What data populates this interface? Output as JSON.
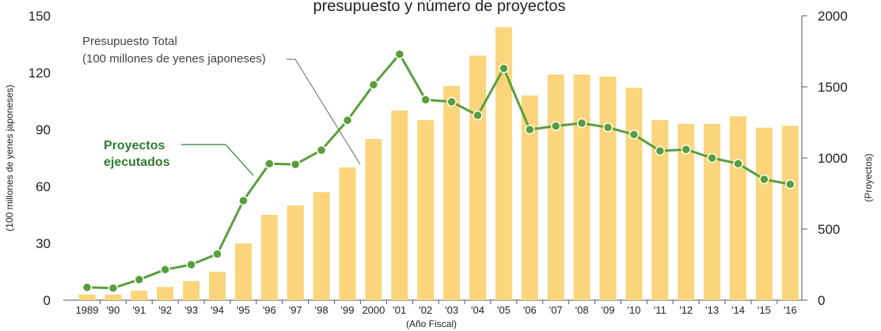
{
  "chart_data": {
    "type": "bar+line",
    "title": "presupuesto y número de proyectos",
    "categories": [
      "1989",
      "'90",
      "'91",
      "'92",
      "'93",
      "'94",
      "'95",
      "'96",
      "'97",
      "'98",
      "'99",
      "2000",
      "'01",
      "'02",
      "'03",
      "'04",
      "'05",
      "'06",
      "'07",
      "'08",
      "'09",
      "'10",
      "'11",
      "'12",
      "'13",
      "'14",
      "'15",
      "'16"
    ],
    "xlabel": "(Año Fiscal)",
    "series": [
      {
        "name": "Presupuesto Total (100 millones de yenes japoneses)",
        "kind": "bar",
        "axis": "left",
        "color": "#fbd57c",
        "values": [
          3,
          3,
          5,
          7,
          10,
          15,
          30,
          45,
          50,
          57,
          70,
          85,
          100,
          95,
          113,
          129,
          144,
          108,
          119,
          119,
          118,
          112,
          95,
          93,
          93,
          97,
          91,
          92
        ]
      },
      {
        "name": "Proyectos ejecutados",
        "kind": "line",
        "axis": "right",
        "color": "#5a9e3c",
        "values": [
          90,
          85,
          145,
          215,
          250,
          325,
          700,
          960,
          955,
          1055,
          1265,
          1515,
          1730,
          1410,
          1395,
          1300,
          1630,
          1200,
          1225,
          1245,
          1215,
          1165,
          1050,
          1060,
          1000,
          960,
          850,
          815
        ]
      }
    ],
    "y_left": {
      "label": "(100 millones de yenes japoneses)",
      "ylim": [
        0,
        150
      ],
      "ticks": [
        "0",
        "30",
        "60",
        "90",
        "120",
        "150"
      ]
    },
    "y_right": {
      "label": "(Proyectos)",
      "ylim": [
        0,
        2000
      ],
      "ticks": [
        "0",
        "500",
        "1000",
        "1500",
        "2000"
      ]
    },
    "annotations": {
      "bar_label_1": "Presupuesto Total",
      "bar_label_2": "(100 millones de yenes japoneses)",
      "line_label_1": "Proyectos",
      "line_label_2": "ejecutados"
    },
    "grid": false
  }
}
